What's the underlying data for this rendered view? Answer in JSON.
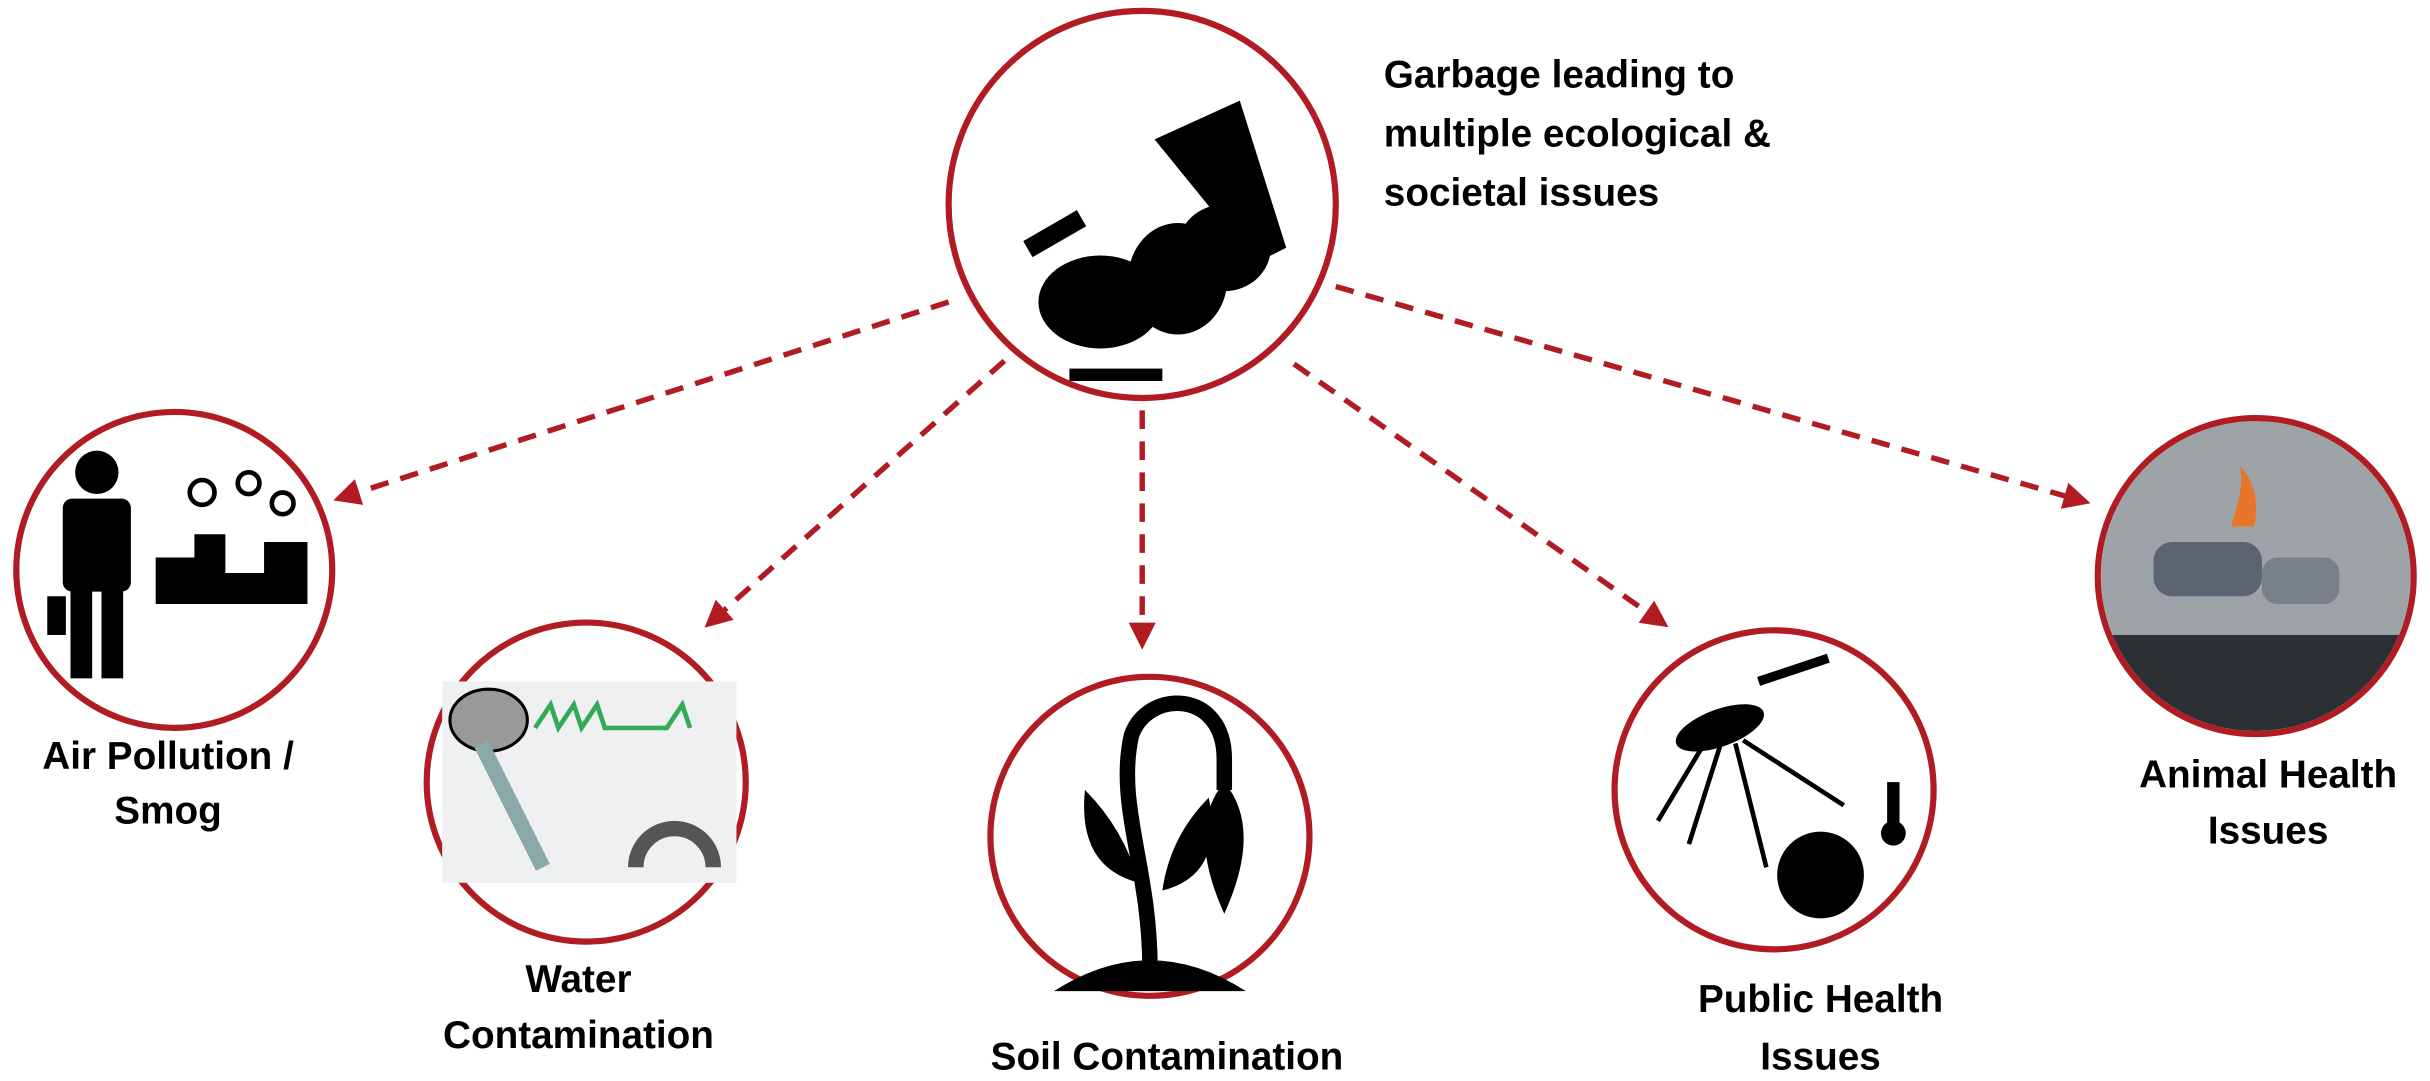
{
  "center": {
    "lines": [
      "Garbage leading to",
      "multiple ecological &",
      "societal issues"
    ]
  },
  "nodes": [
    {
      "lines": [
        "Air Pollution /",
        "Smog"
      ]
    },
    {
      "lines": [
        "Water",
        "Contamination"
      ]
    },
    {
      "lines": [
        "Soil Contamination"
      ]
    },
    {
      "lines": [
        "Public Health",
        "Issues"
      ]
    },
    {
      "lines": [
        "Animal Health",
        "Issues"
      ]
    }
  ]
}
